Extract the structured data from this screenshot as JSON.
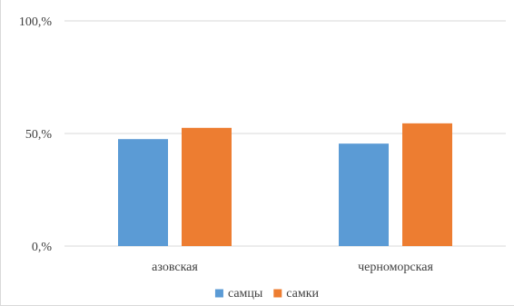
{
  "chart_data": {
    "type": "bar",
    "categories": [
      "азовская",
      "черноморская"
    ],
    "series": [
      {
        "name": "самцы",
        "values": [
          47.5,
          45.5
        ],
        "color": "#5b9bd5"
      },
      {
        "name": "самки",
        "values": [
          52.5,
          54.5
        ],
        "color": "#ed7d31"
      }
    ],
    "ytick_labels": [
      "0,%",
      "50,%",
      "100,%"
    ],
    "ytick_values": [
      0,
      50,
      100
    ],
    "ylim": [
      0,
      100
    ],
    "grid": true,
    "legend_position": "bottom",
    "title": "",
    "xlabel": "",
    "ylabel": ""
  }
}
